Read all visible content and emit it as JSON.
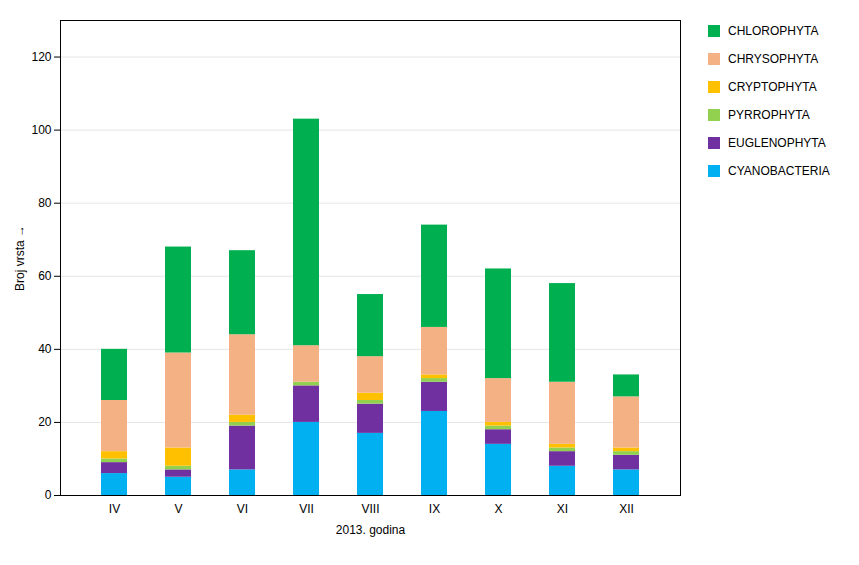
{
  "chart_data": {
    "type": "bar",
    "stacked": true,
    "categories": [
      "IV",
      "V",
      "VI",
      "VII",
      "VIII",
      "IX",
      "X",
      "XI",
      "XII"
    ],
    "series": [
      {
        "name": "CYANOBACTERIA",
        "color": "#00B0F0",
        "values": [
          6,
          5,
          7,
          20,
          17,
          23,
          14,
          8,
          7
        ]
      },
      {
        "name": "EUGLENOPHYTA",
        "color": "#7030A0",
        "values": [
          3,
          2,
          12,
          10,
          8,
          8,
          4,
          4,
          4
        ]
      },
      {
        "name": "PYRROPHYTA",
        "color": "#92D050",
        "values": [
          1,
          1,
          1,
          1,
          1,
          1,
          1,
          1,
          1
        ]
      },
      {
        "name": "CRYPTOPHYTA",
        "color": "#FFC000",
        "values": [
          2,
          5,
          2,
          0,
          2,
          1,
          1,
          1,
          1
        ]
      },
      {
        "name": "CHRYSOPHYTA",
        "color": "#F4B183",
        "values": [
          14,
          26,
          22,
          10,
          10,
          13,
          12,
          17,
          14
        ]
      },
      {
        "name": "CHLOROPHYTA",
        "color": "#00B050",
        "values": [
          14,
          29,
          23,
          62,
          17,
          28,
          30,
          27,
          6
        ]
      }
    ],
    "xlabel": "2013. godina",
    "ylabel": "Broj vrsta",
    "ylim": [
      0,
      130
    ],
    "yticks": [
      0,
      20,
      40,
      60,
      80,
      100,
      120
    ],
    "grid": true,
    "legend": "right"
  }
}
